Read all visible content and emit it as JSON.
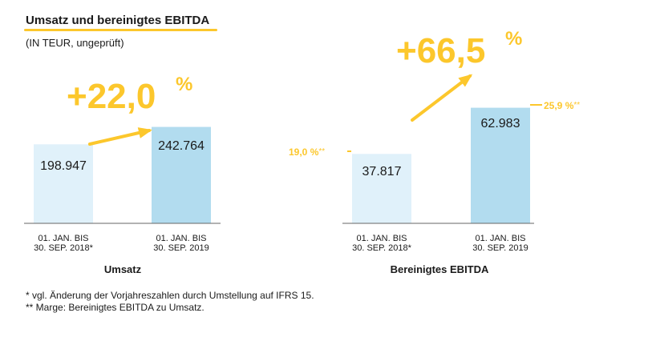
{
  "title": "Umsatz und bereinigtes EBITDA",
  "subtitle": "(IN TEUR, ungeprüft)",
  "colors": {
    "accent": "#fcc72c",
    "bar_prev": "#e0f1fa",
    "bar_curr": "#b2dcef",
    "axis": "#666666"
  },
  "chart_data": [
    {
      "type": "bar",
      "title": "Umsatz",
      "categories": [
        [
          "01. JAN. BIS",
          "30. SEP. 2018*"
        ],
        [
          "01. JAN. BIS",
          "30. SEP. 2019"
        ]
      ],
      "values": [
        198947,
        242764
      ],
      "value_labels": [
        "198.947",
        "242.764"
      ],
      "growth_label": "+22,0",
      "growth_unit": "%",
      "ylim": [
        0,
        260000
      ],
      "grid": false
    },
    {
      "type": "bar",
      "title": "Bereinigtes EBITDA",
      "categories": [
        [
          "01. JAN. BIS",
          "30. SEP. 2018*"
        ],
        [
          "01. JAN. BIS",
          "30. SEP. 2019"
        ]
      ],
      "values": [
        37817,
        62983
      ],
      "value_labels": [
        "37.817",
        "62.983"
      ],
      "growth_label": "+66,5",
      "growth_unit": "%",
      "margins": [
        {
          "value": "19,0 %",
          "mark": "**"
        },
        {
          "value": "25,9 %",
          "mark": "**"
        }
      ],
      "ylim": [
        0,
        67600
      ],
      "grid": false
    }
  ],
  "footnotes": [
    "* vgl. Änderung der Vorjahreszahlen durch Umstellung auf IFRS 15.",
    "** Marge: Bereinigtes EBITDA zu Umsatz."
  ]
}
